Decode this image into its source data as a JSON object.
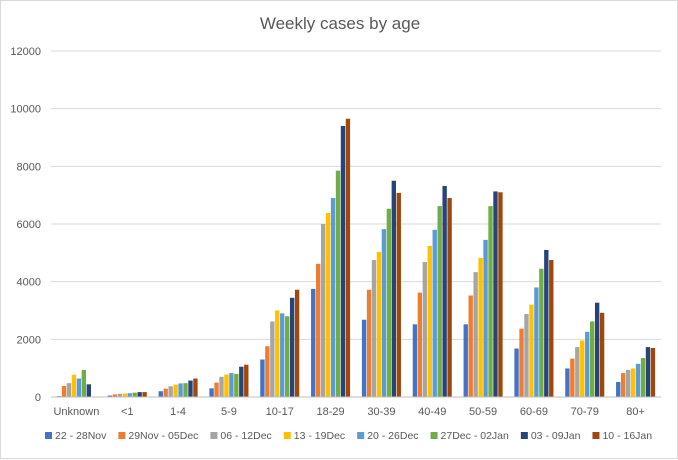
{
  "chart_data": {
    "type": "bar",
    "title": "Weekly cases by age",
    "xlabel": "",
    "ylabel": "",
    "ylim": [
      0,
      12000
    ],
    "yticks": [
      0,
      2000,
      4000,
      6000,
      8000,
      10000,
      12000
    ],
    "grid": true,
    "legend_position": "bottom",
    "categories": [
      "Unknown",
      "<1",
      "1-4",
      "5-9",
      "10-17",
      "18-29",
      "30-39",
      "40-49",
      "50-59",
      "60-69",
      "70-79",
      "80+"
    ],
    "series": [
      {
        "name": "22 - 28Nov",
        "color": "#4472c4",
        "values": [
          30,
          50,
          200,
          300,
          1300,
          3750,
          2680,
          2520,
          2520,
          1680,
          990,
          520
        ]
      },
      {
        "name": "29Nov - 05Dec",
        "color": "#ed7d31",
        "values": [
          380,
          90,
          290,
          500,
          1760,
          4620,
          3720,
          3620,
          3520,
          2370,
          1330,
          830
        ]
      },
      {
        "name": "06 - 12Dec",
        "color": "#a5a5a5",
        "values": [
          480,
          110,
          370,
          700,
          2620,
          6000,
          4750,
          4680,
          4330,
          2880,
          1730,
          940
        ]
      },
      {
        "name": "13 - 19Dec",
        "color": "#ffc000",
        "values": [
          770,
          120,
          430,
          780,
          3000,
          6380,
          5030,
          5240,
          4820,
          3200,
          1960,
          990
        ]
      },
      {
        "name": "20 - 26Dec",
        "color": "#5b9bd5",
        "values": [
          640,
          130,
          470,
          830,
          2900,
          6900,
          5820,
          5800,
          5450,
          3800,
          2260,
          1150
        ]
      },
      {
        "name": "27Dec - 02Jan",
        "color": "#70ad47",
        "values": [
          940,
          150,
          480,
          800,
          2800,
          7850,
          6530,
          6620,
          6620,
          4450,
          2620,
          1350
        ]
      },
      {
        "name": "03 - 09Jan",
        "color": "#264478",
        "values": [
          440,
          170,
          570,
          1050,
          3440,
          9400,
          7500,
          7320,
          7130,
          5100,
          3270,
          1730
        ]
      },
      {
        "name": "10 - 16Jan",
        "color": "#9e480e",
        "values": [
          0,
          170,
          640,
          1120,
          3720,
          9650,
          7080,
          6900,
          7100,
          4750,
          2920,
          1700
        ]
      }
    ]
  }
}
